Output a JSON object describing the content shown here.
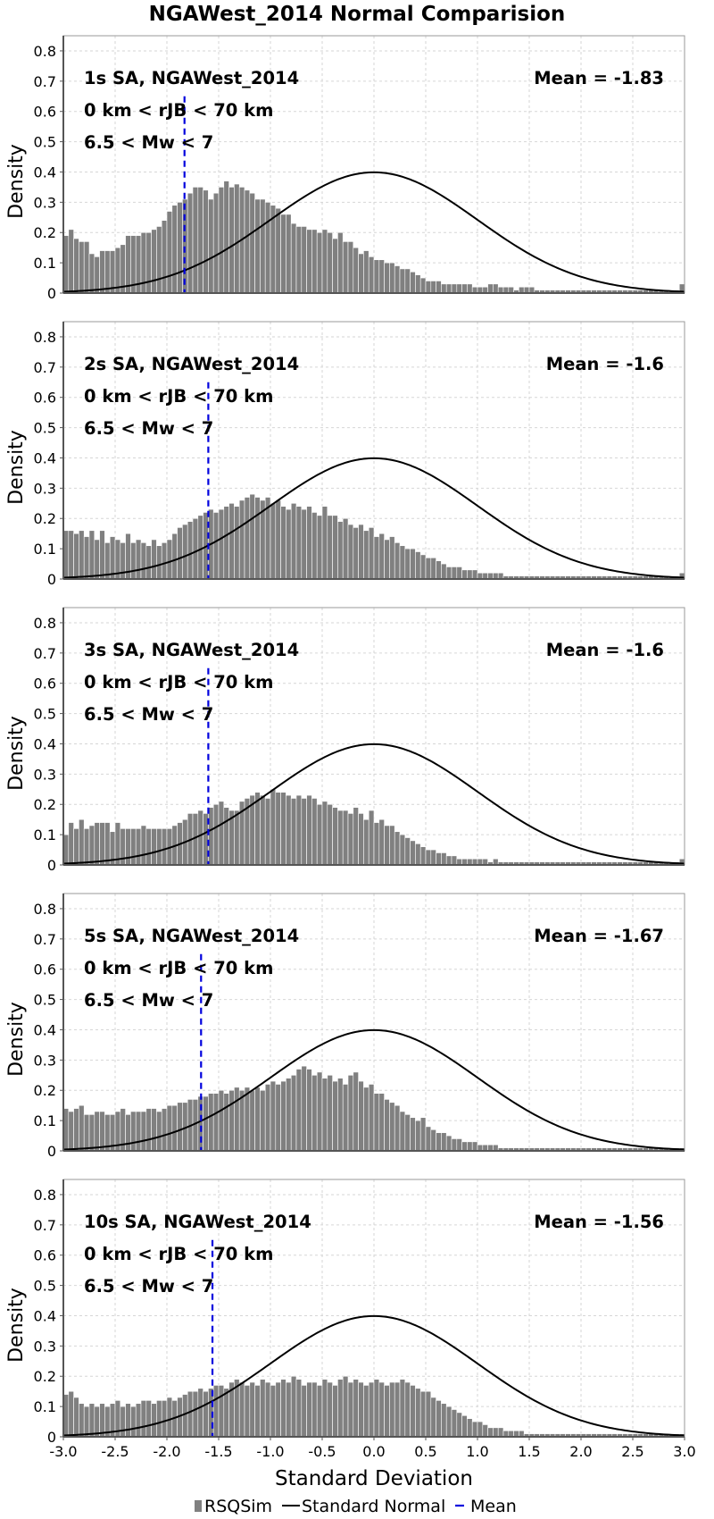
{
  "figure": {
    "title": "NGAWest_2014 Normal Comparision",
    "xlabel": "Standard Deviation",
    "ylabel": "Density",
    "legend": [
      {
        "label": "RSQSim",
        "kind": "bar",
        "color": "#808080"
      },
      {
        "label": "Standard Normal",
        "kind": "line",
        "color": "#000000"
      },
      {
        "label": "Mean",
        "kind": "dashed-line",
        "color": "#0000dd"
      }
    ]
  },
  "chart_data": [
    {
      "type": "bar",
      "annotations": [
        "1s SA, NGAWest_2014",
        "0 km < rJB < 70 km",
        "6.5 < Mw < 7"
      ],
      "mean_label": "Mean = -1.83",
      "mean": -1.83,
      "xlim": [
        -3.0,
        3.0
      ],
      "ylim": [
        0,
        0.85
      ],
      "xticks": [
        "-3.0",
        "-2.5",
        "-2.0",
        "-1.5",
        "-1.0",
        "-0.5",
        "0.0",
        "0.5",
        "1.0",
        "1.5",
        "2.0",
        "2.5",
        "3.0"
      ],
      "yticks": [
        "0",
        "0.1",
        "0.2",
        "0.3",
        "0.4",
        "0.5",
        "0.6",
        "0.7",
        "0.8"
      ],
      "grid": true,
      "bin_start": -3.0,
      "bin_width": 0.05,
      "values": [
        0.19,
        0.21,
        0.18,
        0.17,
        0.17,
        0.13,
        0.12,
        0.14,
        0.14,
        0.14,
        0.15,
        0.16,
        0.19,
        0.19,
        0.19,
        0.2,
        0.2,
        0.21,
        0.22,
        0.24,
        0.27,
        0.29,
        0.3,
        0.31,
        0.33,
        0.35,
        0.35,
        0.34,
        0.31,
        0.33,
        0.35,
        0.37,
        0.35,
        0.36,
        0.35,
        0.34,
        0.33,
        0.31,
        0.31,
        0.3,
        0.29,
        0.28,
        0.26,
        0.26,
        0.23,
        0.22,
        0.22,
        0.21,
        0.21,
        0.2,
        0.21,
        0.2,
        0.18,
        0.2,
        0.17,
        0.17,
        0.15,
        0.13,
        0.14,
        0.12,
        0.11,
        0.11,
        0.1,
        0.1,
        0.09,
        0.08,
        0.08,
        0.07,
        0.06,
        0.05,
        0.04,
        0.04,
        0.04,
        0.03,
        0.03,
        0.03,
        0.03,
        0.03,
        0.03,
        0.02,
        0.02,
        0.02,
        0.03,
        0.03,
        0.02,
        0.02,
        0.02,
        0.01,
        0.02,
        0.02,
        0.02,
        0.01,
        0.01,
        0.01,
        0.01,
        0.01,
        0.01,
        0.01,
        0.01,
        0.01,
        0.01,
        0.01,
        0.01,
        0.01,
        0.01,
        0.01,
        0.01,
        0.01,
        0.01,
        0.01,
        0.01,
        0.01,
        0.01,
        0.01,
        0.01,
        0.01,
        0.01,
        0.01,
        0.01,
        0.03
      ]
    },
    {
      "type": "bar",
      "annotations": [
        "2s SA, NGAWest_2014",
        "0 km < rJB < 70 km",
        "6.5 < Mw < 7"
      ],
      "mean_label": "Mean = -1.6",
      "mean": -1.6,
      "xlim": [
        -3.0,
        3.0
      ],
      "ylim": [
        0,
        0.85
      ],
      "xticks": [
        "-3.0",
        "-2.5",
        "-2.0",
        "-1.5",
        "-1.0",
        "-0.5",
        "0.0",
        "0.5",
        "1.0",
        "1.5",
        "2.0",
        "2.5",
        "3.0"
      ],
      "yticks": [
        "0",
        "0.1",
        "0.2",
        "0.3",
        "0.4",
        "0.5",
        "0.6",
        "0.7",
        "0.8"
      ],
      "grid": true,
      "bin_start": -3.0,
      "bin_width": 0.05,
      "values": [
        0.16,
        0.16,
        0.15,
        0.16,
        0.14,
        0.16,
        0.13,
        0.16,
        0.12,
        0.14,
        0.13,
        0.12,
        0.15,
        0.12,
        0.13,
        0.12,
        0.11,
        0.13,
        0.11,
        0.12,
        0.13,
        0.15,
        0.17,
        0.18,
        0.19,
        0.2,
        0.21,
        0.22,
        0.23,
        0.22,
        0.23,
        0.24,
        0.25,
        0.24,
        0.26,
        0.27,
        0.28,
        0.27,
        0.26,
        0.27,
        0.25,
        0.26,
        0.24,
        0.23,
        0.25,
        0.24,
        0.23,
        0.24,
        0.22,
        0.21,
        0.24,
        0.21,
        0.21,
        0.19,
        0.2,
        0.18,
        0.17,
        0.18,
        0.16,
        0.17,
        0.14,
        0.15,
        0.13,
        0.14,
        0.12,
        0.11,
        0.1,
        0.1,
        0.09,
        0.08,
        0.07,
        0.07,
        0.06,
        0.05,
        0.04,
        0.04,
        0.04,
        0.03,
        0.03,
        0.03,
        0.02,
        0.02,
        0.02,
        0.02,
        0.02,
        0.01,
        0.01,
        0.01,
        0.01,
        0.01,
        0.01,
        0.01,
        0.01,
        0.01,
        0.01,
        0.01,
        0.01,
        0.01,
        0.01,
        0.01,
        0.01,
        0.01,
        0.01,
        0.01,
        0.01,
        0.01,
        0.01,
        0.01,
        0.01,
        0.01,
        0.01,
        0.01,
        0.01,
        0.01,
        0.01,
        0.01,
        0.01,
        0.01,
        0.01,
        0.02
      ]
    },
    {
      "type": "bar",
      "annotations": [
        "3s SA, NGAWest_2014",
        "0 km < rJB < 70 km",
        "6.5 < Mw < 7"
      ],
      "mean_label": "Mean = -1.6",
      "mean": -1.6,
      "xlim": [
        -3.0,
        3.0
      ],
      "ylim": [
        0,
        0.85
      ],
      "xticks": [
        "-3.0",
        "-2.5",
        "-2.0",
        "-1.5",
        "-1.0",
        "-0.5",
        "0.0",
        "0.5",
        "1.0",
        "1.5",
        "2.0",
        "2.5",
        "3.0"
      ],
      "yticks": [
        "0",
        "0.1",
        "0.2",
        "0.3",
        "0.4",
        "0.5",
        "0.6",
        "0.7",
        "0.8"
      ],
      "grid": true,
      "bin_start": -3.0,
      "bin_width": 0.05,
      "values": [
        0.1,
        0.14,
        0.12,
        0.15,
        0.12,
        0.13,
        0.14,
        0.14,
        0.14,
        0.11,
        0.14,
        0.12,
        0.12,
        0.12,
        0.12,
        0.13,
        0.12,
        0.12,
        0.12,
        0.12,
        0.12,
        0.13,
        0.14,
        0.15,
        0.17,
        0.17,
        0.18,
        0.17,
        0.19,
        0.2,
        0.21,
        0.19,
        0.18,
        0.18,
        0.21,
        0.22,
        0.23,
        0.24,
        0.23,
        0.22,
        0.25,
        0.24,
        0.24,
        0.23,
        0.22,
        0.23,
        0.22,
        0.23,
        0.22,
        0.2,
        0.21,
        0.2,
        0.19,
        0.18,
        0.18,
        0.17,
        0.19,
        0.17,
        0.15,
        0.18,
        0.14,
        0.15,
        0.13,
        0.13,
        0.11,
        0.1,
        0.09,
        0.08,
        0.07,
        0.06,
        0.05,
        0.05,
        0.04,
        0.04,
        0.03,
        0.03,
        0.02,
        0.02,
        0.02,
        0.02,
        0.02,
        0.02,
        0.01,
        0.02,
        0.01,
        0.01,
        0.01,
        0.01,
        0.01,
        0.01,
        0.01,
        0.01,
        0.01,
        0.01,
        0.01,
        0.01,
        0.01,
        0.01,
        0.01,
        0.01,
        0.01,
        0.01,
        0.01,
        0.01,
        0.01,
        0.01,
        0.01,
        0.01,
        0.01,
        0.01,
        0.01,
        0.01,
        0.01,
        0.01,
        0.01,
        0.01,
        0.01,
        0.01,
        0.01,
        0.02
      ]
    },
    {
      "type": "bar",
      "annotations": [
        "5s SA, NGAWest_2014",
        "0 km < rJB < 70 km",
        "6.5 < Mw < 7"
      ],
      "mean_label": "Mean = -1.67",
      "mean": -1.67,
      "xlim": [
        -3.0,
        3.0
      ],
      "ylim": [
        0,
        0.85
      ],
      "xticks": [
        "-3.0",
        "-2.5",
        "-2.0",
        "-1.5",
        "-1.0",
        "-0.5",
        "0.0",
        "0.5",
        "1.0",
        "1.5",
        "2.0",
        "2.5",
        "3.0"
      ],
      "yticks": [
        "0",
        "0.1",
        "0.2",
        "0.3",
        "0.4",
        "0.5",
        "0.6",
        "0.7",
        "0.8"
      ],
      "grid": true,
      "bin_start": -3.0,
      "bin_width": 0.05,
      "values": [
        0.14,
        0.13,
        0.14,
        0.15,
        0.12,
        0.12,
        0.13,
        0.13,
        0.12,
        0.12,
        0.13,
        0.14,
        0.12,
        0.13,
        0.13,
        0.13,
        0.14,
        0.14,
        0.13,
        0.14,
        0.15,
        0.15,
        0.16,
        0.16,
        0.17,
        0.17,
        0.18,
        0.18,
        0.19,
        0.19,
        0.2,
        0.19,
        0.2,
        0.21,
        0.2,
        0.21,
        0.2,
        0.21,
        0.2,
        0.22,
        0.23,
        0.22,
        0.23,
        0.24,
        0.25,
        0.27,
        0.28,
        0.27,
        0.25,
        0.26,
        0.24,
        0.25,
        0.23,
        0.24,
        0.22,
        0.25,
        0.26,
        0.23,
        0.21,
        0.22,
        0.19,
        0.19,
        0.17,
        0.16,
        0.15,
        0.13,
        0.12,
        0.11,
        0.1,
        0.11,
        0.08,
        0.07,
        0.06,
        0.06,
        0.05,
        0.04,
        0.04,
        0.03,
        0.03,
        0.03,
        0.02,
        0.02,
        0.02,
        0.02,
        0.01,
        0.01,
        0.01,
        0.01,
        0.01,
        0.01,
        0.01,
        0.01,
        0.01,
        0.01,
        0.01,
        0.01,
        0.01,
        0.01,
        0.01,
        0.01,
        0.01,
        0.01,
        0.01,
        0.01,
        0.01,
        0.01,
        0.01,
        0.01,
        0.01,
        0.01,
        0.01,
        0.01,
        0.01,
        0.01,
        0.01,
        0.01,
        0.01,
        0.01,
        0.01,
        0.01
      ]
    },
    {
      "type": "bar",
      "annotations": [
        "10s SA, NGAWest_2014",
        "0 km < rJB < 70 km",
        "6.5 < Mw < 7"
      ],
      "mean_label": "Mean = -1.56",
      "mean": -1.56,
      "xlim": [
        -3.0,
        3.0
      ],
      "ylim": [
        0,
        0.85
      ],
      "xticks": [
        "-3.0",
        "-2.5",
        "-2.0",
        "-1.5",
        "-1.0",
        "-0.5",
        "0.0",
        "0.5",
        "1.0",
        "1.5",
        "2.0",
        "2.5",
        "3.0"
      ],
      "yticks": [
        "0",
        "0.1",
        "0.2",
        "0.3",
        "0.4",
        "0.5",
        "0.6",
        "0.7",
        "0.8"
      ],
      "grid": true,
      "bin_start": -3.0,
      "bin_width": 0.05,
      "values": [
        0.14,
        0.15,
        0.13,
        0.11,
        0.1,
        0.11,
        0.1,
        0.11,
        0.1,
        0.11,
        0.12,
        0.1,
        0.11,
        0.1,
        0.11,
        0.12,
        0.12,
        0.11,
        0.12,
        0.12,
        0.13,
        0.12,
        0.13,
        0.14,
        0.15,
        0.15,
        0.16,
        0.15,
        0.16,
        0.17,
        0.17,
        0.16,
        0.18,
        0.19,
        0.18,
        0.17,
        0.18,
        0.17,
        0.19,
        0.18,
        0.17,
        0.18,
        0.19,
        0.18,
        0.2,
        0.19,
        0.17,
        0.18,
        0.18,
        0.17,
        0.19,
        0.18,
        0.17,
        0.19,
        0.2,
        0.18,
        0.19,
        0.18,
        0.17,
        0.18,
        0.19,
        0.18,
        0.17,
        0.18,
        0.18,
        0.19,
        0.18,
        0.17,
        0.16,
        0.15,
        0.15,
        0.13,
        0.12,
        0.11,
        0.1,
        0.09,
        0.08,
        0.07,
        0.06,
        0.05,
        0.05,
        0.04,
        0.03,
        0.03,
        0.03,
        0.02,
        0.02,
        0.02,
        0.02,
        0.01,
        0.01,
        0.01,
        0.01,
        0.01,
        0.01,
        0.01,
        0.01,
        0.01,
        0.01,
        0.01,
        0.01,
        0.01,
        0.01,
        0.01,
        0.01,
        0.01,
        0.01,
        0.01,
        0.01,
        0.01,
        0.01,
        0.01,
        0.01,
        0.01,
        0.01,
        0.01,
        0.01,
        0.01,
        0.01,
        0.01
      ]
    }
  ]
}
